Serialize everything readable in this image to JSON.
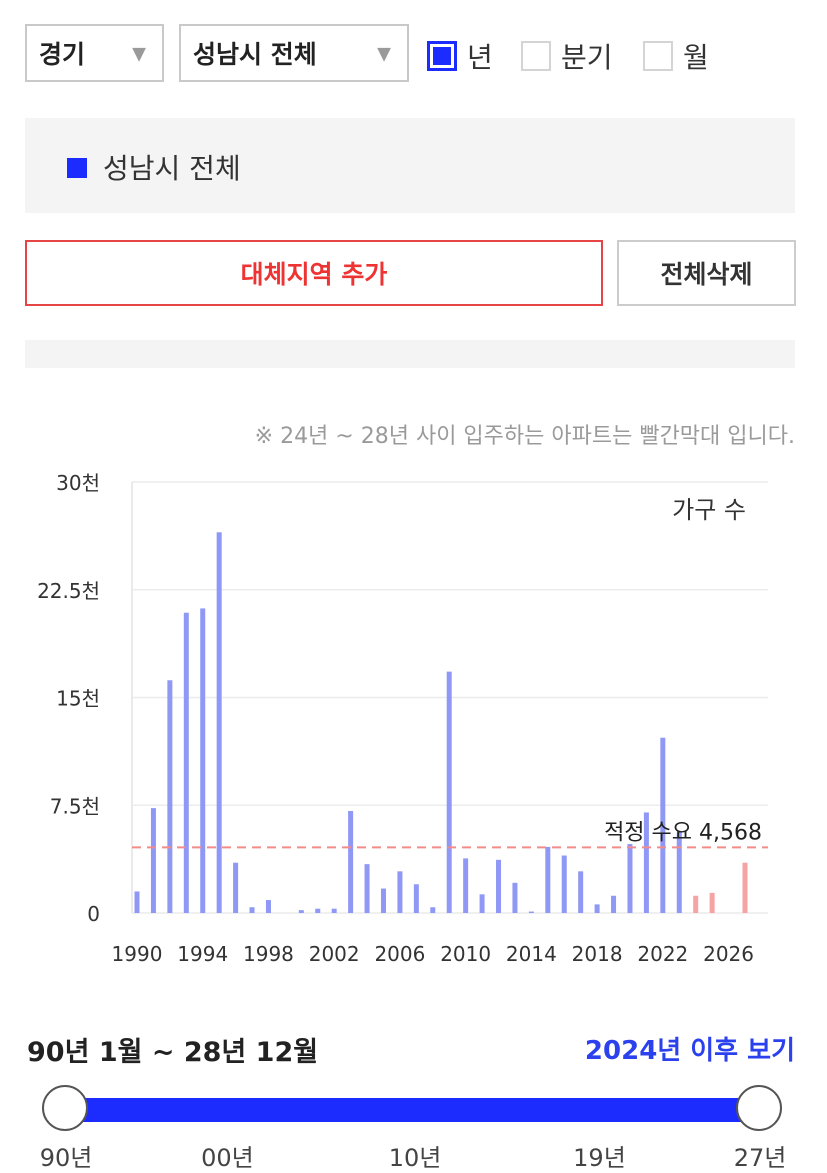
{
  "filters": {
    "province": "경기",
    "city": "성남시 전체",
    "dropdown_icon": "triangle-down",
    "period_options": [
      {
        "label": "년",
        "checked": true
      },
      {
        "label": "분기",
        "checked": false
      },
      {
        "label": "월",
        "checked": false
      }
    ]
  },
  "legend": {
    "region": "성남시 전체",
    "color": "#1c2cff"
  },
  "buttons": {
    "add_region": "대체지역 추가",
    "clear_all": "전체삭제"
  },
  "note": "※ 24년 ~ 28년 사이 입주하는 아파트는 빨간막대 입니다.",
  "chart_data": {
    "type": "bar",
    "title": "",
    "unit_label": "가구 수",
    "ylim": [
      0,
      30000
    ],
    "y_ticks": [
      {
        "value": 0,
        "label": "0"
      },
      {
        "value": 7500,
        "label": "7.5천"
      },
      {
        "value": 15000,
        "label": "15천"
      },
      {
        "value": 22500,
        "label": "22.5천"
      },
      {
        "value": 30000,
        "label": "30천"
      }
    ],
    "x_tick_labels": [
      "1990",
      "1994",
      "1998",
      "2002",
      "2006",
      "2010",
      "2014",
      "2018",
      "2022",
      "2026"
    ],
    "grid": true,
    "reference_line": {
      "label": "적정 수요 4,568",
      "value": 4568,
      "color": "#f28c8c"
    },
    "colors": {
      "past": "#8f98f5",
      "future": "#f5a3a3"
    },
    "series": [
      {
        "name": "성남시 전체",
        "x": [
          1990,
          1991,
          1992,
          1993,
          1994,
          1995,
          1996,
          1997,
          1998,
          1999,
          2000,
          2001,
          2002,
          2003,
          2004,
          2005,
          2006,
          2007,
          2008,
          2009,
          2010,
          2011,
          2012,
          2013,
          2014,
          2015,
          2016,
          2017,
          2018,
          2019,
          2020,
          2021,
          2022,
          2023,
          2024,
          2025,
          2026,
          2027
        ],
        "values": [
          1500,
          7300,
          16200,
          20900,
          21200,
          26500,
          3500,
          400,
          900,
          0,
          200,
          300,
          300,
          7100,
          3400,
          1700,
          2900,
          2000,
          400,
          16800,
          3800,
          1300,
          3700,
          2100,
          100,
          4600,
          4000,
          2900,
          600,
          1200,
          4800,
          7000,
          12200,
          5600,
          1200,
          1400,
          0,
          3500
        ]
      }
    ]
  },
  "range": {
    "label": "90년 1월 ~ 28년 12월",
    "link": "2024년 이후 보기",
    "ticks": [
      {
        "label": "90년",
        "fraction": 0.0
      },
      {
        "label": "00년",
        "fraction": 0.2326
      },
      {
        "label": "10년",
        "fraction": 0.5029
      },
      {
        "label": "19년",
        "fraction": 0.7687
      },
      {
        "label": "27년",
        "fraction": 1.0
      }
    ]
  }
}
